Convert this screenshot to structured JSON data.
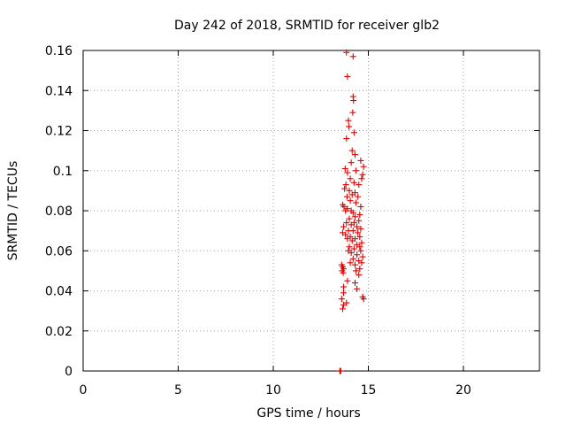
{
  "chart_data": {
    "type": "scatter",
    "title": "Day 242 of 2018, SRMTID for receiver glb2",
    "xlabel": "GPS time / hours",
    "ylabel": "SRMTID / TECUs",
    "xlim": [
      0,
      24
    ],
    "ylim": [
      0,
      0.16
    ],
    "xticks": [
      0,
      5,
      10,
      15,
      20
    ],
    "xtick_labels": [
      "0",
      "5",
      "10",
      "15",
      "20"
    ],
    "yticks": [
      0,
      0.02,
      0.04,
      0.06,
      0.08,
      0.1,
      0.12,
      0.14,
      0.16
    ],
    "ytick_labels": [
      "0",
      "0.02",
      "0.04",
      "0.06",
      "0.08",
      "0.1",
      "0.12",
      "0.14",
      "0.16"
    ],
    "grid": true,
    "marker": "+",
    "marker_color": "#e00000",
    "zero_points": [
      {
        "x": 13.5,
        "y": 0
      },
      {
        "x": 13.52,
        "y": 0
      },
      {
        "x": 13.55,
        "y": 0
      }
    ],
    "points": [
      {
        "x": 13.85,
        "y": 0.159
      },
      {
        "x": 14.2,
        "y": 0.157
      },
      {
        "x": 13.9,
        "y": 0.147
      },
      {
        "x": 14.2,
        "y": 0.137
      },
      {
        "x": 14.22,
        "y": 0.135
      },
      {
        "x": 14.18,
        "y": 0.129
      },
      {
        "x": 13.95,
        "y": 0.125
      },
      {
        "x": 13.98,
        "y": 0.122
      },
      {
        "x": 14.25,
        "y": 0.119
      },
      {
        "x": 13.85,
        "y": 0.116
      },
      {
        "x": 14.15,
        "y": 0.11
      },
      {
        "x": 14.3,
        "y": 0.108
      },
      {
        "x": 14.1,
        "y": 0.104
      },
      {
        "x": 14.6,
        "y": 0.105
      },
      {
        "x": 14.75,
        "y": 0.102
      },
      {
        "x": 13.78,
        "y": 0.101
      },
      {
        "x": 13.9,
        "y": 0.099
      },
      {
        "x": 14.35,
        "y": 0.1
      },
      {
        "x": 14.7,
        "y": 0.098
      },
      {
        "x": 14.65,
        "y": 0.096
      },
      {
        "x": 14.05,
        "y": 0.096
      },
      {
        "x": 13.82,
        "y": 0.093
      },
      {
        "x": 14.25,
        "y": 0.094
      },
      {
        "x": 14.5,
        "y": 0.093
      },
      {
        "x": 13.75,
        "y": 0.091
      },
      {
        "x": 14.0,
        "y": 0.09
      },
      {
        "x": 14.3,
        "y": 0.089
      },
      {
        "x": 14.15,
        "y": 0.088
      },
      {
        "x": 13.88,
        "y": 0.087
      },
      {
        "x": 14.45,
        "y": 0.087
      },
      {
        "x": 14.05,
        "y": 0.085
      },
      {
        "x": 14.35,
        "y": 0.084
      },
      {
        "x": 13.65,
        "y": 0.083
      },
      {
        "x": 13.72,
        "y": 0.082
      },
      {
        "x": 14.6,
        "y": 0.082
      },
      {
        "x": 13.9,
        "y": 0.081
      },
      {
        "x": 14.1,
        "y": 0.08
      },
      {
        "x": 13.8,
        "y": 0.08
      },
      {
        "x": 14.2,
        "y": 0.079
      },
      {
        "x": 14.55,
        "y": 0.078
      },
      {
        "x": 14.3,
        "y": 0.077
      },
      {
        "x": 14.0,
        "y": 0.076
      },
      {
        "x": 14.5,
        "y": 0.075
      },
      {
        "x": 13.85,
        "y": 0.074
      },
      {
        "x": 14.25,
        "y": 0.074
      },
      {
        "x": 14.1,
        "y": 0.073
      },
      {
        "x": 14.4,
        "y": 0.072
      },
      {
        "x": 13.7,
        "y": 0.072
      },
      {
        "x": 14.6,
        "y": 0.071
      },
      {
        "x": 13.95,
        "y": 0.07
      },
      {
        "x": 14.2,
        "y": 0.07
      },
      {
        "x": 13.65,
        "y": 0.069
      },
      {
        "x": 14.45,
        "y": 0.069
      },
      {
        "x": 13.8,
        "y": 0.068
      },
      {
        "x": 14.05,
        "y": 0.067
      },
      {
        "x": 14.55,
        "y": 0.067
      },
      {
        "x": 13.9,
        "y": 0.066
      },
      {
        "x": 14.3,
        "y": 0.066
      },
      {
        "x": 14.15,
        "y": 0.065
      },
      {
        "x": 14.65,
        "y": 0.064
      },
      {
        "x": 14.4,
        "y": 0.063
      },
      {
        "x": 14.0,
        "y": 0.062
      },
      {
        "x": 14.55,
        "y": 0.062
      },
      {
        "x": 14.25,
        "y": 0.061
      },
      {
        "x": 13.95,
        "y": 0.06
      },
      {
        "x": 14.6,
        "y": 0.06
      },
      {
        "x": 14.1,
        "y": 0.059
      },
      {
        "x": 14.4,
        "y": 0.058
      },
      {
        "x": 14.7,
        "y": 0.057
      },
      {
        "x": 14.2,
        "y": 0.056
      },
      {
        "x": 14.5,
        "y": 0.055
      },
      {
        "x": 14.05,
        "y": 0.054
      },
      {
        "x": 14.65,
        "y": 0.054
      },
      {
        "x": 14.3,
        "y": 0.053
      },
      {
        "x": 13.6,
        "y": 0.053
      },
      {
        "x": 13.65,
        "y": 0.052
      },
      {
        "x": 13.7,
        "y": 0.051
      },
      {
        "x": 13.62,
        "y": 0.05
      },
      {
        "x": 14.55,
        "y": 0.051
      },
      {
        "x": 14.35,
        "y": 0.05
      },
      {
        "x": 13.68,
        "y": 0.049
      },
      {
        "x": 14.5,
        "y": 0.048
      },
      {
        "x": 13.9,
        "y": 0.045
      },
      {
        "x": 14.3,
        "y": 0.044
      },
      {
        "x": 13.7,
        "y": 0.042
      },
      {
        "x": 14.4,
        "y": 0.041
      },
      {
        "x": 13.7,
        "y": 0.039
      },
      {
        "x": 14.7,
        "y": 0.037
      },
      {
        "x": 14.75,
        "y": 0.036
      },
      {
        "x": 13.6,
        "y": 0.036
      },
      {
        "x": 13.85,
        "y": 0.034
      },
      {
        "x": 13.7,
        "y": 0.033
      },
      {
        "x": 13.65,
        "y": 0.031
      }
    ]
  }
}
